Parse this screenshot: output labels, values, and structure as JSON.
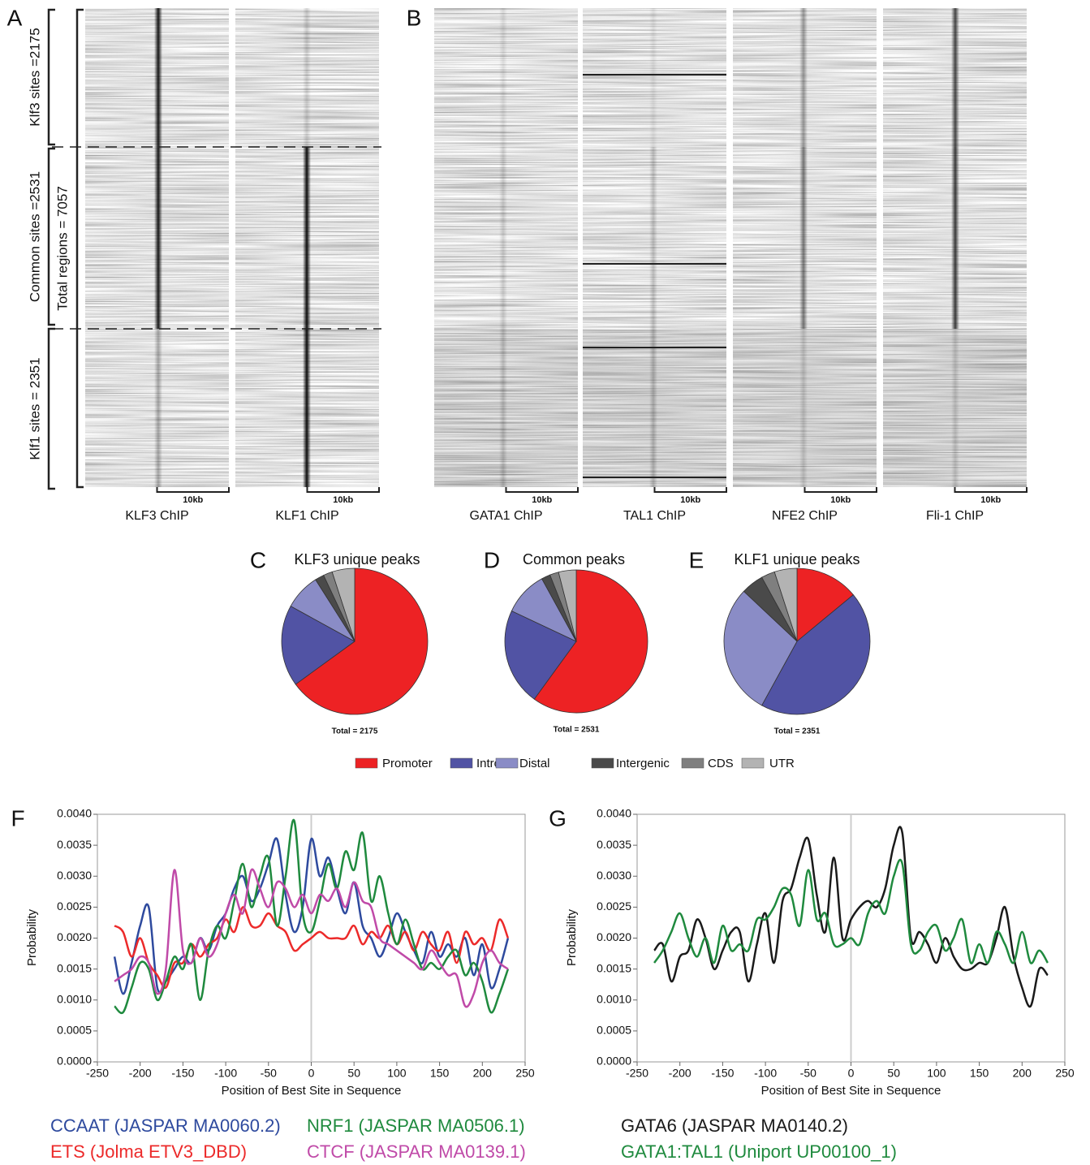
{
  "heatmaps": {
    "panels": [
      "A",
      "B"
    ],
    "groups": [
      "Klf3 sites =2175",
      "Common sites =2531",
      "Klf1 sites = 2351"
    ],
    "total": "Total regions = 7057",
    "scale": "10kb",
    "tracks": [
      "KLF3 ChIP",
      "KLF1 ChIP",
      "GATA1 ChIP",
      "TAL1 ChIP",
      "NFE2 ChIP",
      "Fli-1 ChIP"
    ]
  },
  "pie_legend": {
    "categories": [
      "Promoter",
      "Intron",
      "Distal",
      "Intergenic",
      "CDS",
      "UTR"
    ],
    "colors": [
      "#ed2224",
      "#5153a4",
      "#8a8cc6",
      "#4a4a4a",
      "#7f7f7f",
      "#b3b3b3"
    ]
  },
  "chart_data": [
    {
      "type": "pie",
      "panel": "C",
      "title": "KLF3 unique peaks",
      "total": "Total = 2175",
      "values": [
        65,
        18,
        8,
        2,
        2,
        5
      ]
    },
    {
      "type": "pie",
      "panel": "D",
      "title": "Common peaks",
      "total": "Total = 2531",
      "values": [
        60,
        22,
        10,
        2,
        2,
        4
      ]
    },
    {
      "type": "pie",
      "panel": "E",
      "title": "KLF1 unique peaks",
      "total": "Total = 2351",
      "values": [
        14,
        44,
        29,
        5,
        3,
        5
      ]
    },
    {
      "type": "line",
      "panel": "F",
      "xlabel": "Position of Best Site in Sequence",
      "ylabel": "Probability",
      "x": [
        -230,
        -220,
        -210,
        -200,
        -190,
        -180,
        -170,
        -160,
        -150,
        -140,
        -130,
        -120,
        -110,
        -100,
        -90,
        -80,
        -70,
        -60,
        -50,
        -40,
        -30,
        -20,
        -10,
        0,
        10,
        20,
        30,
        40,
        50,
        60,
        70,
        80,
        90,
        100,
        110,
        120,
        130,
        140,
        150,
        160,
        170,
        180,
        190,
        200,
        210,
        220,
        230
      ],
      "xlim": [
        -250,
        250
      ],
      "xticks": [
        -250,
        -200,
        -150,
        -100,
        -50,
        0,
        50,
        100,
        150,
        200,
        250
      ],
      "ylim": [
        0,
        0.004
      ],
      "yticks": [
        {
          "value": 0,
          "label": "0.0000"
        },
        {
          "value": 0.0005,
          "label": "0.0005"
        },
        {
          "value": 0.001,
          "label": "0.0010"
        },
        {
          "value": 0.0015,
          "label": "0.0015"
        },
        {
          "value": 0.002,
          "label": "0.0020"
        },
        {
          "value": 0.0025,
          "label": "0.0025"
        },
        {
          "value": 0.003,
          "label": "0.0030"
        },
        {
          "value": 0.0035,
          "label": "0.0035"
        },
        {
          "value": 0.004,
          "label": "0.0040"
        }
      ],
      "series": [
        {
          "name": "CCAAT (JASPAR MA0060.2)",
          "color": "#2e4a9e",
          "values": [
            0.0017,
            0.0011,
            0.0016,
            0.0022,
            0.0025,
            0.0012,
            0.0013,
            0.0015,
            0.0017,
            0.0016,
            0.002,
            0.0018,
            0.0022,
            0.0024,
            0.0028,
            0.003,
            0.0026,
            0.0028,
            0.0032,
            0.0036,
            0.0027,
            0.0021,
            0.0025,
            0.0036,
            0.003,
            0.0033,
            0.0028,
            0.0024,
            0.0029,
            0.0022,
            0.002,
            0.0017,
            0.002,
            0.0024,
            0.0021,
            0.0018,
            0.0016,
            0.0021,
            0.0017,
            0.0019,
            0.0017,
            0.002,
            0.0014,
            0.0019,
            0.0012,
            0.0015,
            0.002
          ]
        },
        {
          "name": "ETS (Jolma ETV3_DBD)",
          "color": "#ec2a2a",
          "values": [
            0.0022,
            0.0021,
            0.0017,
            0.002,
            0.0016,
            0.0014,
            0.0012,
            0.0016,
            0.0016,
            0.0019,
            0.0017,
            0.0019,
            0.002,
            0.0023,
            0.0021,
            0.0025,
            0.0022,
            0.0022,
            0.0024,
            0.0022,
            0.0021,
            0.0018,
            0.0019,
            0.002,
            0.0021,
            0.002,
            0.002,
            0.002,
            0.0022,
            0.0019,
            0.0021,
            0.002,
            0.0022,
            0.0019,
            0.0021,
            0.0018,
            0.0021,
            0.0019,
            0.0018,
            0.0021,
            0.0016,
            0.0021,
            0.0019,
            0.002,
            0.0018,
            0.0023,
            0.002
          ]
        },
        {
          "name": "NRF1 (JASPAR MA0506.1)",
          "color": "#1f8a3e",
          "values": [
            0.0009,
            0.0008,
            0.0012,
            0.0016,
            0.0015,
            0.001,
            0.0013,
            0.0017,
            0.0015,
            0.0019,
            0.001,
            0.0018,
            0.0022,
            0.002,
            0.0026,
            0.0032,
            0.0025,
            0.003,
            0.0033,
            0.0022,
            0.003,
            0.0039,
            0.0024,
            0.0021,
            0.0026,
            0.0032,
            0.0028,
            0.0034,
            0.0031,
            0.0037,
            0.0026,
            0.003,
            0.0024,
            0.0019,
            0.0023,
            0.0019,
            0.0015,
            0.0016,
            0.0015,
            0.0017,
            0.0018,
            0.0014,
            0.0016,
            0.0013,
            0.0008,
            0.0011,
            0.0015
          ]
        },
        {
          "name": "CTCF (JASPAR MA0139.1)",
          "color": "#c04aa8",
          "values": [
            0.0013,
            0.0014,
            0.0015,
            0.0017,
            0.0016,
            0.0011,
            0.0015,
            0.0031,
            0.0018,
            0.0016,
            0.002,
            0.0017,
            0.0019,
            0.0024,
            0.0027,
            0.0024,
            0.0031,
            0.0028,
            0.0025,
            0.0029,
            0.0028,
            0.0025,
            0.0027,
            0.0024,
            0.0027,
            0.0026,
            0.0028,
            0.0025,
            0.0029,
            0.0026,
            0.0025,
            0.002,
            0.0019,
            0.0018,
            0.0017,
            0.0016,
            0.0015,
            0.0018,
            0.0016,
            0.0014,
            0.0014,
            0.0009,
            0.0011,
            0.0016,
            0.0018,
            0.0016,
            0.0015
          ]
        }
      ]
    },
    {
      "type": "line",
      "panel": "G",
      "xlabel": "Position of Best Site in Sequence",
      "ylabel": "Probability",
      "x": [
        -230,
        -220,
        -210,
        -200,
        -190,
        -180,
        -170,
        -160,
        -150,
        -140,
        -130,
        -120,
        -110,
        -100,
        -90,
        -80,
        -70,
        -60,
        -50,
        -40,
        -30,
        -20,
        -10,
        0,
        10,
        20,
        30,
        40,
        50,
        60,
        70,
        80,
        90,
        100,
        110,
        120,
        130,
        140,
        150,
        160,
        170,
        180,
        190,
        200,
        210,
        220,
        230
      ],
      "xlim": [
        -250,
        250
      ],
      "xticks": [
        -250,
        -200,
        -150,
        -100,
        -50,
        0,
        50,
        100,
        150,
        200,
        250
      ],
      "ylim": [
        0,
        0.004
      ],
      "yticks": [
        {
          "value": 0,
          "label": "0.0000"
        },
        {
          "value": 0.0005,
          "label": "0.0005"
        },
        {
          "value": 0.001,
          "label": "0.0010"
        },
        {
          "value": 0.0015,
          "label": "0.0015"
        },
        {
          "value": 0.002,
          "label": "0.0020"
        },
        {
          "value": 0.0025,
          "label": "0.0025"
        },
        {
          "value": 0.003,
          "label": "0.0030"
        },
        {
          "value": 0.0035,
          "label": "0.0035"
        },
        {
          "value": 0.004,
          "label": "0.0040"
        }
      ],
      "series": [
        {
          "name": "GATA6 (JASPAR MA0140.2)",
          "color": "#1a1a1a",
          "values": [
            0.0018,
            0.0019,
            0.0013,
            0.0017,
            0.0018,
            0.0023,
            0.002,
            0.0015,
            0.0018,
            0.0021,
            0.0021,
            0.0013,
            0.0019,
            0.0024,
            0.0016,
            0.0026,
            0.0028,
            0.0033,
            0.0036,
            0.0027,
            0.0021,
            0.0033,
            0.002,
            0.0023,
            0.0025,
            0.0026,
            0.0025,
            0.0028,
            0.0035,
            0.0037,
            0.002,
            0.0021,
            0.0019,
            0.0016,
            0.002,
            0.0017,
            0.0015,
            0.0015,
            0.0016,
            0.0016,
            0.002,
            0.0025,
            0.0017,
            0.0012,
            0.0009,
            0.0015,
            0.0014
          ]
        },
        {
          "name": "GATA1:TAL1 (Uniport UP00100_1)",
          "color": "#1f8a3e",
          "values": [
            0.0016,
            0.0018,
            0.0021,
            0.0024,
            0.002,
            0.0017,
            0.002,
            0.0016,
            0.0022,
            0.0018,
            0.0019,
            0.0018,
            0.0023,
            0.0023,
            0.0025,
            0.0028,
            0.0027,
            0.0022,
            0.0031,
            0.0023,
            0.0024,
            0.0019,
            0.0019,
            0.002,
            0.0019,
            0.0024,
            0.0026,
            0.0024,
            0.003,
            0.0032,
            0.0019,
            0.0018,
            0.0021,
            0.0022,
            0.0018,
            0.002,
            0.0023,
            0.0016,
            0.0019,
            0.0016,
            0.0021,
            0.0019,
            0.0016,
            0.0021,
            0.0016,
            0.0018,
            0.0016
          ]
        }
      ]
    }
  ]
}
